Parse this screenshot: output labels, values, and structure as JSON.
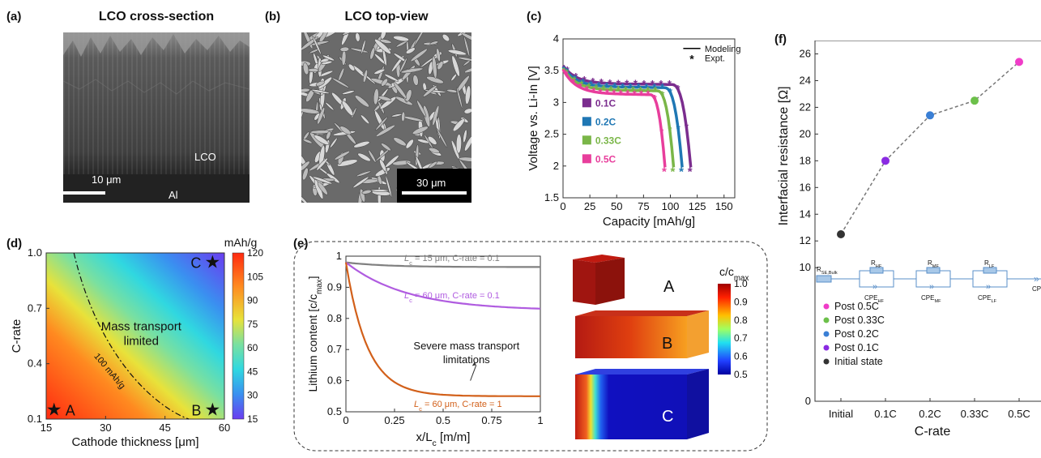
{
  "panels": {
    "a": {
      "label": "(a)",
      "title": "LCO cross-section",
      "scale_bar": "10 μm",
      "region_top": "LCO",
      "region_bottom": "Al"
    },
    "b": {
      "label": "(b)",
      "title": "LCO top-view",
      "scale_bar": "30 μm"
    },
    "c": {
      "label": "(c)"
    },
    "d": {
      "label": "(d)",
      "colorbar_unit": "mAh/g",
      "region_text_1": "Mass transport",
      "region_text_2": "limited",
      "contour_label": "100 mAh/g",
      "marker_A": "A",
      "marker_B": "B",
      "marker_C": "C"
    },
    "e": {
      "label": "(e)",
      "annotation_1": "Severe mass transport",
      "annotation_2": "limitations",
      "colorbar_title": "c/c",
      "colorbar_title_sub": "max",
      "block_A": "A",
      "block_B": "B",
      "block_C": "C"
    },
    "f": {
      "label": "(f)",
      "circuit": {
        "r_bulk": "R",
        "r_bulk_sub": "SE,Bulk",
        "r_hf": "R",
        "r_hf_sub": "HF",
        "r_mf": "R",
        "r_mf_sub": "MF",
        "r_lf": "R",
        "r_lf_sub": "LF",
        "cpe_hf": "CPE",
        "cpe_hf_sub": "HF",
        "cpe_mf": "CPE",
        "cpe_mf_sub": "MF",
        "cpe_lf": "CPE",
        "cpe_lf_sub": "LF",
        "cpe_end": "CPE"
      }
    }
  },
  "chart_data": [
    {
      "id": "c",
      "type": "line",
      "xlabel": "Capacity [mAh/g]",
      "ylabel": "Voltage vs. Li-In [V]",
      "xlim": [
        0,
        160
      ],
      "ylim": [
        1.5,
        4
      ],
      "xticks": [
        "0",
        "25",
        "50",
        "75",
        "100",
        "125",
        "150"
      ],
      "yticks": [
        "1.5",
        "2",
        "2.5",
        "3",
        "3.5",
        "4"
      ],
      "legend": [
        {
          "label": "Modeling",
          "style": "line"
        },
        {
          "label": "Expt.",
          "style": "star"
        }
      ],
      "series": [
        {
          "name": "0.1C",
          "color": "#7b2d8e",
          "capacity_end": 119,
          "plateau": 3.3,
          "start": 3.58
        },
        {
          "name": "0.2C",
          "color": "#1f77b4",
          "capacity_end": 111,
          "plateau": 3.25,
          "start": 3.56
        },
        {
          "name": "0.33C",
          "color": "#7ab648",
          "capacity_end": 103,
          "plateau": 3.2,
          "start": 3.54
        },
        {
          "name": "0.5C",
          "color": "#e83e9c",
          "capacity_end": 95,
          "plateau": 3.14,
          "start": 3.52
        }
      ]
    },
    {
      "id": "d",
      "type": "heatmap",
      "xlabel": "Cathode thickness [μm]",
      "ylabel": "C-rate",
      "xlim": [
        15,
        60
      ],
      "ylim": [
        0.1,
        1.0
      ],
      "xticks": [
        "15",
        "30",
        "45",
        "60"
      ],
      "yticks": [
        "0.1",
        "0.4",
        "0.7",
        "1.0"
      ],
      "colorbar": {
        "min": 15,
        "max": 120,
        "ticks": [
          "15",
          "30",
          "45",
          "60",
          "75",
          "90",
          "105",
          "120"
        ]
      },
      "points": [
        {
          "label": "A",
          "x": 17,
          "y": 0.15
        },
        {
          "label": "B",
          "x": 57,
          "y": 0.15
        },
        {
          "label": "C",
          "x": 57,
          "y": 0.95
        }
      ]
    },
    {
      "id": "e",
      "type": "line",
      "xlabel": "x/L",
      "xlabel_sub": "c",
      "xlabel_unit": " [m/m]",
      "ylabel": "Lithium content [c/c",
      "ylabel_sub": "max",
      "ylabel_end": "]",
      "xlim": [
        0,
        1
      ],
      "ylim": [
        0.5,
        1
      ],
      "xticks": [
        "0",
        "0.25",
        "0.5",
        "0.75",
        "1"
      ],
      "yticks": [
        "0.5",
        "0.6",
        "0.7",
        "0.8",
        "0.9",
        "1"
      ],
      "series": [
        {
          "name": "L_c = 15 μm, C-rate = 0.1",
          "label_lc": "L",
          "label_sub": "c",
          "label_rest": " = 15 μm, C-rate = 0.1",
          "color": "#808080",
          "end": 0.965,
          "rate": 5
        },
        {
          "name": "L_c = 60 μm, C-rate = 0.1",
          "label_lc": "L",
          "label_sub": "c",
          "label_rest": " = 60 μm, C-rate = 0.1",
          "color": "#b05ce0",
          "end": 0.825,
          "rate": 3.2
        },
        {
          "name": "L_c = 60 μm, C-rate = 1",
          "label_lc": "L",
          "label_sub": "c",
          "label_rest": " = 60 μm, C-rate = 1",
          "color": "#d2601a",
          "end": 0.55,
          "rate": 9
        }
      ],
      "colorbar": {
        "ticks": [
          "1.0",
          "0.9",
          "0.8",
          "0.7",
          "0.6",
          "0.5"
        ]
      }
    },
    {
      "id": "f",
      "type": "scatter",
      "xlabel": "C-rate",
      "ylabel": "Interfacial resistance [Ω]",
      "ylim": [
        0,
        27
      ],
      "yticks": [
        "0",
        "10",
        "12",
        "14",
        "16",
        "18",
        "20",
        "22",
        "24",
        "26"
      ],
      "categories": [
        "Initial",
        "0.1C",
        "0.2C",
        "0.33C",
        "0.5C"
      ],
      "values": [
        12.5,
        18.0,
        21.4,
        22.5,
        25.4
      ],
      "colors": [
        "#333333",
        "#8a2be2",
        "#3a7fd5",
        "#6cc04a",
        "#f03cc8"
      ],
      "legend": [
        "Post 0.5C",
        "Post 0.33C",
        "Post 0.2C",
        "Post 0.1C",
        "Initial state"
      ],
      "legend_colors": [
        "#f03cc8",
        "#6cc04a",
        "#3a7fd5",
        "#8a2be2",
        "#333333"
      ]
    }
  ]
}
